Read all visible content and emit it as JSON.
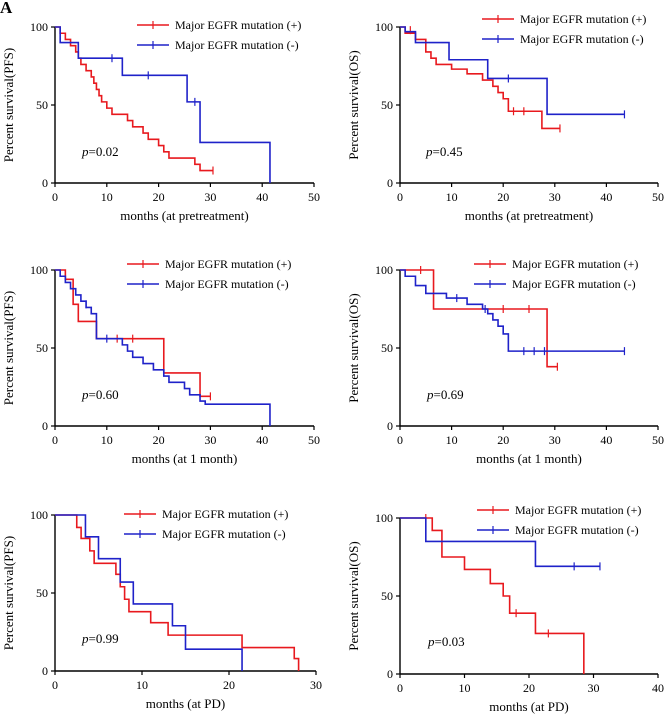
{
  "figure_label": "A",
  "colors": {
    "red": "#e8191e",
    "blue": "#1f22c9",
    "axis": "#000000"
  },
  "chart_data": [
    {
      "type": "kaplan-meier",
      "ylabel": "Percent survival(PFS)",
      "xlabel": "months (at pretreatment)",
      "xlim": [
        0,
        50
      ],
      "xticks": [
        0,
        10,
        20,
        30,
        40,
        50
      ],
      "ylim": [
        0,
        100
      ],
      "yticks": [
        0,
        50,
        100
      ],
      "p_prefix": "p",
      "p_value": "=0.02",
      "series": [
        {
          "name": "Major EGFR mutation (+)",
          "color": "red",
          "steps": [
            [
              0,
              100
            ],
            [
              1,
              96
            ],
            [
              2,
              92
            ],
            [
              3,
              88
            ],
            [
              4,
              84
            ],
            [
              4.5,
              80
            ],
            [
              5,
              76
            ],
            [
              6,
              72
            ],
            [
              7,
              68
            ],
            [
              7.5,
              64
            ],
            [
              8,
              60
            ],
            [
              8.5,
              56
            ],
            [
              9,
              52
            ],
            [
              10,
              48
            ],
            [
              11,
              44
            ],
            [
              14,
              40
            ],
            [
              15,
              36
            ],
            [
              17,
              32
            ],
            [
              18,
              28
            ],
            [
              20,
              24
            ],
            [
              21,
              20
            ],
            [
              22,
              16
            ],
            [
              27,
              12
            ],
            [
              28,
              8
            ],
            [
              30.5,
              8
            ]
          ],
          "censors": [
            [
              30.5,
              8
            ]
          ]
        },
        {
          "name": "Major EGFR mutation (-)",
          "color": "blue",
          "steps": [
            [
              0,
              100
            ],
            [
              1,
              90
            ],
            [
              4.5,
              80
            ],
            [
              13,
              69
            ],
            [
              25.5,
              52
            ],
            [
              28,
              26
            ],
            [
              41.5,
              0
            ]
          ],
          "censors": [
            [
              11,
              80
            ],
            [
              18,
              69
            ],
            [
              27,
              52
            ]
          ]
        }
      ]
    },
    {
      "type": "kaplan-meier",
      "ylabel": "Percent survival(OS)",
      "xlabel": "months (at pretreatment)",
      "xlim": [
        0,
        50
      ],
      "xticks": [
        0,
        10,
        20,
        30,
        40,
        50
      ],
      "ylim": [
        0,
        100
      ],
      "yticks": [
        0,
        50,
        100
      ],
      "p_prefix": "p",
      "p_value": "=0.45",
      "series": [
        {
          "name": "Major EGFR mutation (+)",
          "color": "red",
          "steps": [
            [
              0,
              100
            ],
            [
              1,
              96
            ],
            [
              3,
              92
            ],
            [
              5,
              84
            ],
            [
              6,
              80
            ],
            [
              7,
              76
            ],
            [
              10,
              73
            ],
            [
              13,
              70
            ],
            [
              16,
              66
            ],
            [
              18,
              62
            ],
            [
              19,
              58
            ],
            [
              20,
              54
            ],
            [
              21,
              46
            ],
            [
              27.5,
              35
            ],
            [
              31,
              35
            ]
          ],
          "censors": [
            [
              2,
              98
            ],
            [
              22,
              46
            ],
            [
              24,
              46
            ],
            [
              31,
              35
            ]
          ]
        },
        {
          "name": "Major EGFR mutation (-)",
          "color": "blue",
          "steps": [
            [
              0,
              100
            ],
            [
              1,
              97
            ],
            [
              3,
              90
            ],
            [
              9.5,
              79
            ],
            [
              17,
              67
            ],
            [
              28.5,
              44
            ],
            [
              43.5,
              44
            ]
          ],
          "censors": [
            [
              21,
              67
            ],
            [
              43.5,
              44
            ]
          ]
        }
      ]
    },
    {
      "type": "kaplan-meier",
      "ylabel": "Percent survival(PFS)",
      "xlabel": "months (at 1 month)",
      "xlim": [
        0,
        50
      ],
      "xticks": [
        0,
        10,
        20,
        30,
        40,
        50
      ],
      "ylim": [
        0,
        100
      ],
      "yticks": [
        0,
        50,
        100
      ],
      "p_prefix": "p",
      "p_value": "=0.60",
      "series": [
        {
          "name": "Major EGFR mutation (+)",
          "color": "red",
          "steps": [
            [
              0,
              100
            ],
            [
              2,
              94
            ],
            [
              3.5,
              78
            ],
            [
              4.5,
              67
            ],
            [
              8,
              56
            ],
            [
              21,
              34
            ],
            [
              28,
              19
            ],
            [
              30,
              19
            ]
          ],
          "censors": [
            [
              12,
              56
            ],
            [
              15,
              56
            ],
            [
              30,
              19
            ]
          ]
        },
        {
          "name": "Major EGFR mutation (-)",
          "color": "blue",
          "steps": [
            [
              0,
              100
            ],
            [
              1,
              96
            ],
            [
              2,
              92
            ],
            [
              3,
              88
            ],
            [
              4,
              84
            ],
            [
              5,
              80
            ],
            [
              6,
              76
            ],
            [
              7,
              72
            ],
            [
              8,
              56
            ],
            [
              13,
              52
            ],
            [
              14,
              48
            ],
            [
              15,
              44
            ],
            [
              17,
              40
            ],
            [
              19,
              36
            ],
            [
              21,
              32
            ],
            [
              22,
              28
            ],
            [
              25,
              24
            ],
            [
              26,
              20
            ],
            [
              28,
              16
            ],
            [
              29,
              14
            ],
            [
              41.5,
              0
            ]
          ],
          "censors": [
            [
              6,
              78
            ],
            [
              10,
              56
            ]
          ]
        }
      ]
    },
    {
      "type": "kaplan-meier",
      "ylabel": "Percent survival(OS)",
      "xlabel": "months (at 1 month)",
      "xlim": [
        0,
        50
      ],
      "xticks": [
        0,
        10,
        20,
        30,
        40,
        50
      ],
      "ylim": [
        0,
        100
      ],
      "yticks": [
        0,
        50,
        100
      ],
      "p_prefix": "p",
      "p_value": "=0.69",
      "series": [
        {
          "name": "Major EGFR mutation (+)",
          "color": "red",
          "steps": [
            [
              0,
              100
            ],
            [
              6.5,
              75
            ],
            [
              28.5,
              38
            ],
            [
              30.5,
              38
            ]
          ],
          "censors": [
            [
              4,
              100
            ],
            [
              20,
              75
            ],
            [
              25,
              75
            ],
            [
              30.5,
              38
            ]
          ]
        },
        {
          "name": "Major EGFR mutation (-)",
          "color": "blue",
          "steps": [
            [
              0,
              100
            ],
            [
              1,
              96
            ],
            [
              3,
              90
            ],
            [
              5,
              85
            ],
            [
              9,
              82
            ],
            [
              13,
              78
            ],
            [
              16,
              75
            ],
            [
              17,
              72
            ],
            [
              18,
              68
            ],
            [
              19,
              64
            ],
            [
              20,
              59
            ],
            [
              21,
              48
            ],
            [
              43.5,
              48
            ]
          ],
          "censors": [
            [
              11,
              82
            ],
            [
              16.5,
              75
            ],
            [
              24,
              48
            ],
            [
              26,
              48
            ],
            [
              28,
              48
            ],
            [
              43.5,
              48
            ]
          ]
        }
      ]
    },
    {
      "type": "kaplan-meier",
      "ylabel": "Percent survival(PFS)",
      "xlabel": "months (at PD)",
      "xlim": [
        0,
        30
      ],
      "xticks": [
        0,
        10,
        20,
        30
      ],
      "ylim": [
        0,
        100
      ],
      "yticks": [
        0,
        50,
        100
      ],
      "p_prefix": "p",
      "p_value": "=0.99",
      "series": [
        {
          "name": "Major EGFR mutation (+)",
          "color": "red",
          "steps": [
            [
              0,
              100
            ],
            [
              2.5,
              92
            ],
            [
              3,
              85
            ],
            [
              4,
              77
            ],
            [
              4.5,
              69
            ],
            [
              7,
              62
            ],
            [
              7.5,
              54
            ],
            [
              8,
              46
            ],
            [
              8.5,
              38
            ],
            [
              11,
              31
            ],
            [
              13,
              23
            ],
            [
              21.5,
              15
            ],
            [
              27.5,
              8
            ],
            [
              28,
              0
            ]
          ],
          "censors": []
        },
        {
          "name": "Major EGFR mutation (-)",
          "color": "blue",
          "steps": [
            [
              0,
              100
            ],
            [
              3.5,
              86
            ],
            [
              5,
              72
            ],
            [
              7.5,
              57
            ],
            [
              9,
              43
            ],
            [
              13.5,
              29
            ],
            [
              15,
              14
            ],
            [
              21.5,
              0
            ]
          ],
          "censors": []
        }
      ]
    },
    {
      "type": "kaplan-meier",
      "ylabel": "Percent survival(OS)",
      "xlabel": "months (at PD)",
      "xlim": [
        0,
        40
      ],
      "xticks": [
        0,
        10,
        20,
        30,
        40
      ],
      "ylim": [
        0,
        100
      ],
      "yticks": [
        0,
        50,
        100
      ],
      "p_prefix": "p",
      "p_value": "=0.03",
      "series": [
        {
          "name": "Major EGFR mutation (+)",
          "color": "red",
          "steps": [
            [
              0,
              100
            ],
            [
              5,
              92
            ],
            [
              6.5,
              75
            ],
            [
              10,
              67
            ],
            [
              14,
              58
            ],
            [
              16,
              50
            ],
            [
              17,
              39
            ],
            [
              21,
              26
            ],
            [
              28.5,
              0
            ]
          ],
          "censors": [
            [
              4,
              100
            ],
            [
              18,
              39
            ],
            [
              23,
              26
            ]
          ]
        },
        {
          "name": "Major EGFR mutation (-)",
          "color": "blue",
          "steps": [
            [
              0,
              100
            ],
            [
              4,
              85
            ],
            [
              21,
              69
            ],
            [
              31,
              69
            ]
          ],
          "censors": [
            [
              27,
              69
            ],
            [
              31,
              69
            ]
          ]
        }
      ]
    }
  ]
}
